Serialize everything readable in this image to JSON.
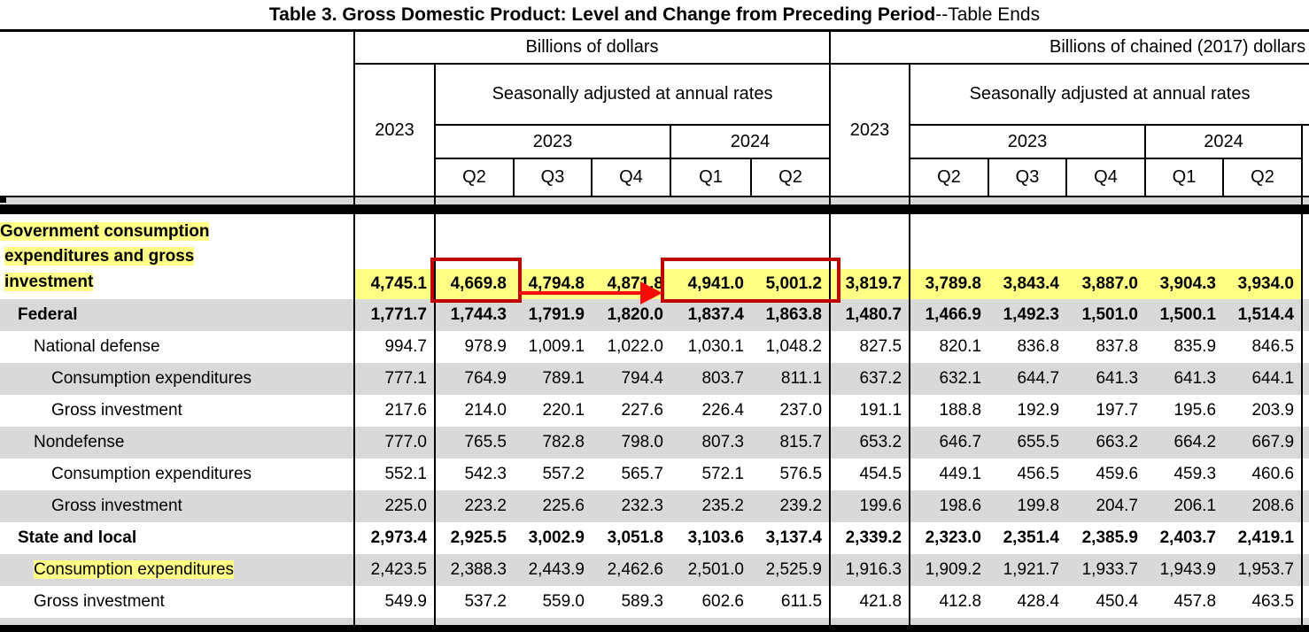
{
  "title": {
    "main": "Table 3. Gross Domestic Product: Level and Change from Preceding Period",
    "suffix": "--Table Ends"
  },
  "header": {
    "group_dollars": "Billions of dollars",
    "group_chained": "Billions of chained (2017) dollars",
    "annual_label": "2023",
    "saar_label": "Seasonally adjusted at annual rates",
    "year_2023": "2023",
    "year_2024": "2024",
    "quarters_2023": [
      "Q2",
      "Q3",
      "Q4"
    ],
    "quarters_2024": [
      "Q1",
      "Q2"
    ]
  },
  "rows": [
    {
      "label": "Government consumption expenditures and gross investment",
      "label_lines": [
        "Government consumption",
        "expenditures and gross",
        "investment"
      ],
      "dollars": [
        "4,745.1",
        "4,669.8",
        "4,794.8",
        "4,871.8",
        "4,941.0",
        "5,001.2"
      ],
      "chained": [
        "3,819.7",
        "3,789.8",
        "3,843.4",
        "3,887.0",
        "3,904.3",
        "3,934.0"
      ]
    },
    {
      "label": "Federal",
      "dollars": [
        "1,771.7",
        "1,744.3",
        "1,791.9",
        "1,820.0",
        "1,837.4",
        "1,863.8"
      ],
      "chained": [
        "1,480.7",
        "1,466.9",
        "1,492.3",
        "1,501.0",
        "1,500.1",
        "1,514.4"
      ]
    },
    {
      "label": "National defense",
      "dollars": [
        "994.7",
        "978.9",
        "1,009.1",
        "1,022.0",
        "1,030.1",
        "1,048.2"
      ],
      "chained": [
        "827.5",
        "820.1",
        "836.8",
        "837.8",
        "835.9",
        "846.5"
      ]
    },
    {
      "label": "Consumption expenditures",
      "dollars": [
        "777.1",
        "764.9",
        "789.1",
        "794.4",
        "803.7",
        "811.1"
      ],
      "chained": [
        "637.2",
        "632.1",
        "644.7",
        "641.3",
        "641.3",
        "644.1"
      ]
    },
    {
      "label": "Gross investment",
      "dollars": [
        "217.6",
        "214.0",
        "220.1",
        "227.6",
        "226.4",
        "237.0"
      ],
      "chained": [
        "191.1",
        "188.8",
        "192.9",
        "197.7",
        "195.6",
        "203.9"
      ]
    },
    {
      "label": "Nondefense",
      "dollars": [
        "777.0",
        "765.5",
        "782.8",
        "798.0",
        "807.3",
        "815.7"
      ],
      "chained": [
        "653.2",
        "646.7",
        "655.5",
        "663.2",
        "664.2",
        "667.9"
      ]
    },
    {
      "label": "Consumption expenditures",
      "dollars": [
        "552.1",
        "542.3",
        "557.2",
        "565.7",
        "572.1",
        "576.5"
      ],
      "chained": [
        "454.5",
        "449.1",
        "456.5",
        "459.6",
        "459.3",
        "460.6"
      ]
    },
    {
      "label": "Gross investment",
      "dollars": [
        "225.0",
        "223.2",
        "225.6",
        "232.3",
        "235.2",
        "239.2"
      ],
      "chained": [
        "199.6",
        "198.6",
        "199.8",
        "204.7",
        "206.1",
        "208.6"
      ]
    },
    {
      "label": "State and local",
      "dollars": [
        "2,973.4",
        "2,925.5",
        "3,002.9",
        "3,051.8",
        "3,103.6",
        "3,137.4"
      ],
      "chained": [
        "2,339.2",
        "2,323.0",
        "2,351.4",
        "2,385.9",
        "2,403.7",
        "2,419.1"
      ]
    },
    {
      "label": "Consumption expenditures",
      "dollars": [
        "2,423.5",
        "2,388.3",
        "2,443.9",
        "2,462.6",
        "2,501.0",
        "2,525.9"
      ],
      "chained": [
        "1,916.3",
        "1,909.2",
        "1,921.7",
        "1,933.7",
        "1,943.9",
        "1,953.7"
      ]
    },
    {
      "label": "Gross investment",
      "dollars": [
        "549.9",
        "537.2",
        "559.0",
        "589.3",
        "602.6",
        "611.5"
      ],
      "chained": [
        "421.8",
        "412.8",
        "428.4",
        "450.4",
        "457.8",
        "463.5"
      ]
    }
  ],
  "annotations": {
    "highlight_color": "#ffff85",
    "box_color": "#c00000",
    "arrow_color": "#fa0b0b",
    "box1_target": "2023 Q2 dollars value 4,669.8",
    "box2_target": "2024 Q1 and Q2 dollars values 4,941.0 and 5,001.2"
  }
}
